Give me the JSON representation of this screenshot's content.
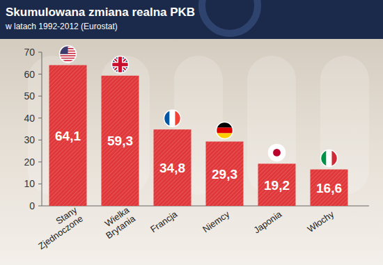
{
  "chart_data": {
    "type": "bar",
    "title": "Skumulowana zmiana realna PKB",
    "subtitle": "w latach 1992-2012 (Eurostat)",
    "categories": [
      "Stany Zjednoczone",
      "Wielka Brytania",
      "Francja",
      "Niemcy",
      "Japonia",
      "Włochy"
    ],
    "values": [
      64.1,
      59.3,
      34.8,
      29.3,
      19.2,
      16.6
    ],
    "value_labels": [
      "64,1",
      "59,3",
      "34,8",
      "29,3",
      "19,2",
      "16,6"
    ],
    "color": "#e0383a",
    "ylim": [
      0,
      70
    ],
    "yticks": [
      0,
      10,
      20,
      30,
      40,
      50,
      60,
      70
    ],
    "grid": false,
    "data_labels": true
  }
}
